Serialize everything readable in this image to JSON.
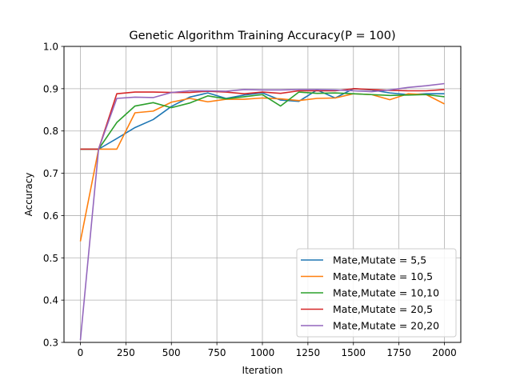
{
  "chart_data": {
    "type": "line",
    "title": "Genetic Algorithm Training Accuracy(P = 100)",
    "xlabel": "Iteration",
    "ylabel": "Accuracy",
    "xlim": [
      -90,
      2090
    ],
    "ylim": [
      0.3,
      1.0
    ],
    "xticks": [
      0,
      250,
      500,
      750,
      1000,
      1250,
      1500,
      1750,
      2000
    ],
    "yticks": [
      0.3,
      0.4,
      0.5,
      0.6,
      0.7,
      0.8,
      0.9,
      1.0
    ],
    "xtick_labels": [
      "0",
      "250",
      "500",
      "750",
      "1000",
      "1250",
      "1500",
      "1750",
      "2000"
    ],
    "ytick_labels": [
      "0.3",
      "0.4",
      "0.5",
      "0.6",
      "0.7",
      "0.8",
      "0.9",
      "1.0"
    ],
    "grid": true,
    "legend_position": "lower-right",
    "x": [
      0,
      100,
      200,
      300,
      400,
      500,
      600,
      700,
      800,
      900,
      1000,
      1100,
      1200,
      1300,
      1400,
      1500,
      1600,
      1700,
      1800,
      1900,
      2000
    ],
    "series": [
      {
        "name": "Mate,Mutate = 5,5",
        "color": "#1f77b4",
        "values": [
          0.757,
          0.757,
          0.782,
          0.808,
          0.827,
          0.858,
          0.88,
          0.89,
          0.877,
          0.885,
          0.89,
          0.873,
          0.87,
          0.897,
          0.878,
          0.9,
          0.897,
          0.89,
          0.886,
          0.888,
          0.888
        ]
      },
      {
        "name": "Mate,Mutate = 10,5",
        "color": "#ff7f0e",
        "values": [
          0.539,
          0.757,
          0.757,
          0.843,
          0.847,
          0.868,
          0.877,
          0.869,
          0.875,
          0.875,
          0.878,
          0.876,
          0.872,
          0.877,
          0.878,
          0.888,
          0.886,
          0.874,
          0.888,
          0.886,
          0.864
        ]
      },
      {
        "name": "Mate,Mutate = 10,10",
        "color": "#2ca02c",
        "values": [
          0.757,
          0.757,
          0.82,
          0.859,
          0.867,
          0.855,
          0.866,
          0.883,
          0.876,
          0.881,
          0.886,
          0.859,
          0.892,
          0.889,
          0.89,
          0.888,
          0.886,
          0.884,
          0.885,
          0.886,
          0.881
        ]
      },
      {
        "name": "Mate,Mutate = 20,5",
        "color": "#d62728",
        "values": [
          0.757,
          0.757,
          0.888,
          0.892,
          0.892,
          0.891,
          0.891,
          0.894,
          0.892,
          0.888,
          0.892,
          0.889,
          0.895,
          0.895,
          0.895,
          0.9,
          0.898,
          0.896,
          0.895,
          0.895,
          0.898
        ]
      },
      {
        "name": "Mate,Mutate = 20,20",
        "color": "#9467bd",
        "values": [
          0.305,
          0.757,
          0.877,
          0.88,
          0.879,
          0.891,
          0.895,
          0.895,
          0.894,
          0.898,
          0.897,
          0.897,
          0.898,
          0.898,
          0.897,
          0.895,
          0.893,
          0.897,
          0.903,
          0.907,
          0.912
        ]
      }
    ]
  }
}
